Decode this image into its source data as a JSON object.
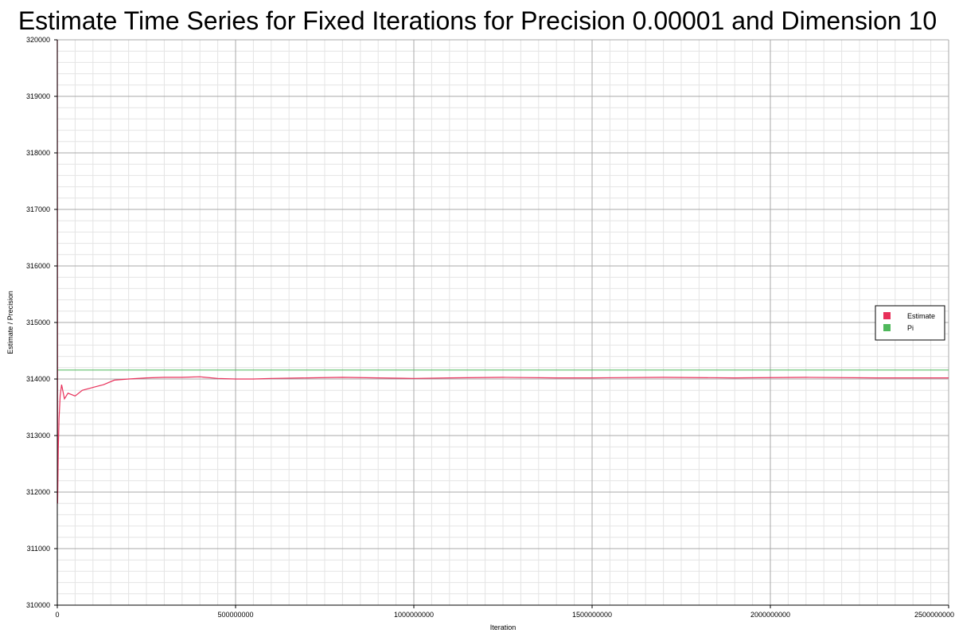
{
  "chart_data": {
    "type": "line",
    "title": "Estimate Time Series for Fixed Iterations for Precision 0.00001 and Dimension 10",
    "xlabel": "Iteration",
    "ylabel": "Estimate / Precision",
    "xlim": [
      0,
      2500000000
    ],
    "ylim": [
      310000,
      320000
    ],
    "x_ticks": [
      0,
      500000000,
      1000000000,
      1500000000,
      2000000000,
      2500000000
    ],
    "y_ticks": [
      310000,
      311000,
      312000,
      313000,
      314000,
      315000,
      316000,
      317000,
      318000,
      319000,
      320000
    ],
    "grid": true,
    "legend_position": "right",
    "series": [
      {
        "name": "Estimate",
        "color": "#e8305a",
        "x": [
          0,
          1000000,
          3000000,
          5000000,
          8000000,
          12000000,
          20000000,
          30000000,
          50000000,
          70000000,
          100000000,
          130000000,
          160000000,
          200000000,
          250000000,
          300000000,
          350000000,
          400000000,
          450000000,
          500000000,
          550000000,
          600000000,
          700000000,
          800000000,
          900000000,
          1000000000,
          1100000000,
          1250000000,
          1400000000,
          1500000000,
          1700000000,
          1900000000,
          2100000000,
          2300000000,
          2500000000
        ],
        "y": [
          320000,
          311800,
          312800,
          313300,
          313700,
          313900,
          313650,
          313750,
          313700,
          313800,
          313850,
          313900,
          313980,
          314000,
          314020,
          314030,
          314030,
          314040,
          314010,
          314000,
          314000,
          314010,
          314020,
          314030,
          314020,
          314010,
          314020,
          314030,
          314020,
          314020,
          314030,
          314020,
          314030,
          314020,
          314020
        ]
      },
      {
        "name": "Pi",
        "color": "#4fb85c",
        "x": [
          0,
          2500000000
        ],
        "y": [
          314159,
          314159
        ]
      }
    ]
  }
}
